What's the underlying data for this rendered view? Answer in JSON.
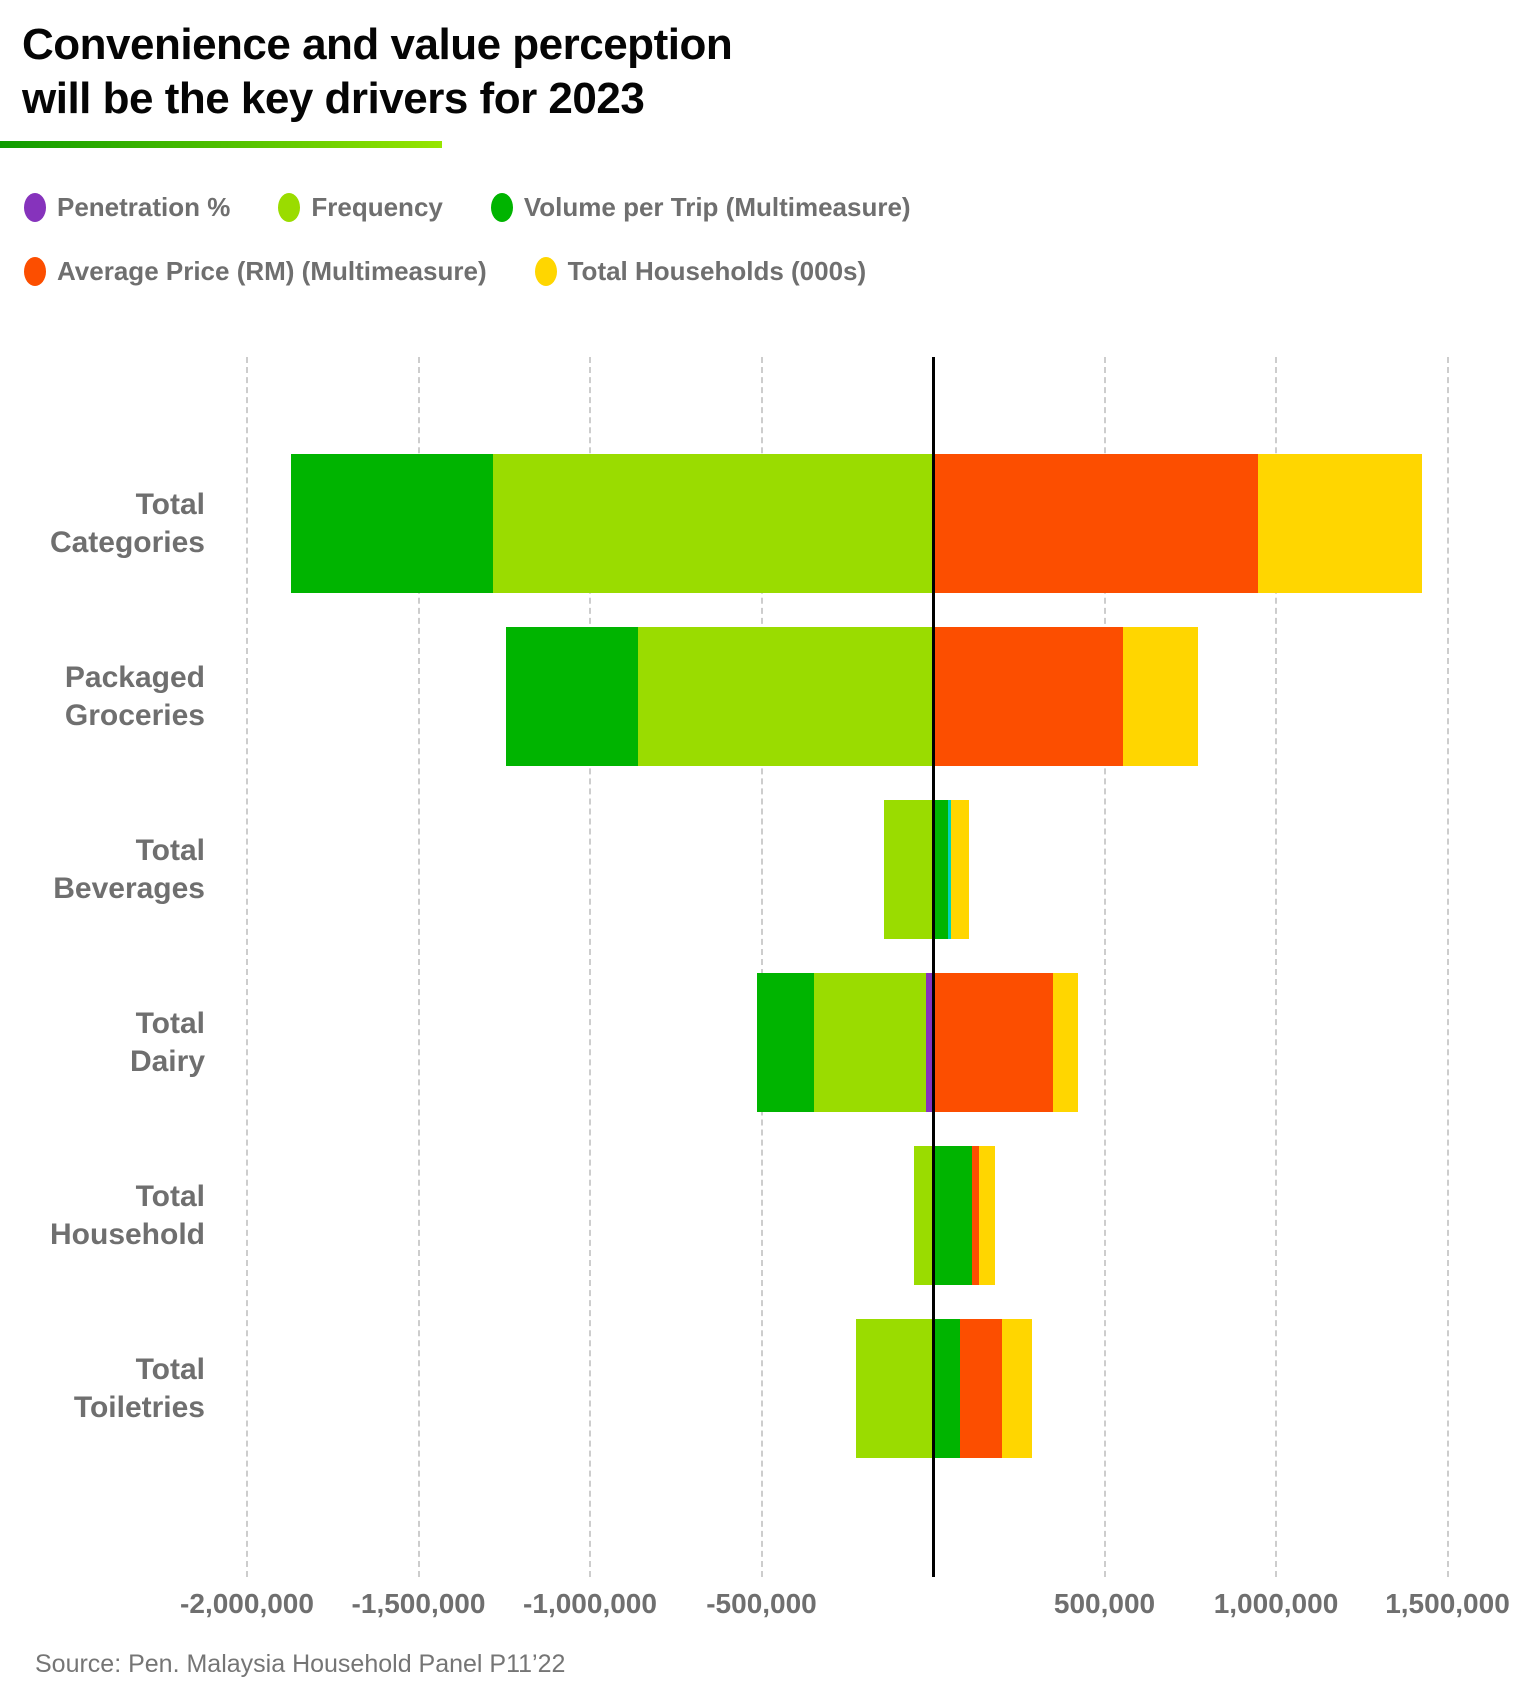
{
  "header": {
    "title_line1": "Convenience and value perception",
    "title_line2": "will be the key drivers for 2023"
  },
  "legend": {
    "items": [
      {
        "label": "Penetration %",
        "color": "#8633bc"
      },
      {
        "label": "Frequency",
        "color": "#9adc00"
      },
      {
        "label": "Volume per Trip (Multimeasure)",
        "color": "#00b400"
      },
      {
        "label": "Average Price (RM) (Multimeasure)",
        "color": "#fc4e00"
      },
      {
        "label": "Total Households (000s)",
        "color": "#ffd600"
      }
    ]
  },
  "footer": {
    "source": "Source: Pen. Malaysia Household Panel P11’22"
  },
  "chart_data": {
    "type": "bar",
    "subtype": "diverging-stacked-horizontal",
    "title": "Convenience and value perception will be the key drivers for 2023",
    "xlabel": "",
    "ylabel": "",
    "xlim": [
      -2350000,
      1770000
    ],
    "grid": "vertical dashed gridlines every 500,000",
    "zero_line": true,
    "legend_position": "top-left, two rows",
    "categories": [
      "Total\nCategories",
      "Packaged\nGroceries",
      "Total\nBeverages",
      "Total\nDairy",
      "Total\nHousehold",
      "Total\nToiletries"
    ],
    "series": [
      {
        "name": "Penetration %",
        "color": "#8633bc",
        "values": [
          0,
          0,
          0,
          -20000,
          0,
          0
        ]
      },
      {
        "name": "Frequency",
        "color": "#9adc00",
        "values": [
          -1284000,
          -859000,
          -144000,
          -327000,
          -56000,
          -225000
        ]
      },
      {
        "name": "Volume per Trip (Multimeasure)",
        "color": "#00b400",
        "values": [
          -589000,
          -387000,
          43000,
          -167000,
          115000,
          79000
        ]
      },
      {
        "name": "Unlabeled (teal)",
        "color": "#00d5bb",
        "values": [
          0,
          0,
          9000,
          0,
          0,
          0
        ]
      },
      {
        "name": "Average Price (RM) (Multimeasure)",
        "color": "#fc4e00",
        "values": [
          947000,
          553000,
          0,
          349000,
          19000,
          122000
        ]
      },
      {
        "name": "Total Households (000s)",
        "color": "#ffd600",
        "values": [
          479000,
          219000,
          52000,
          74000,
          46000,
          87000
        ]
      }
    ],
    "x_axis": {
      "ticks": [
        {
          "value": -2000000,
          "label": "-2,000,000"
        },
        {
          "value": -1500000,
          "label": "-1,500,000"
        },
        {
          "value": -1000000,
          "label": "-1,000,000"
        },
        {
          "value": -500000,
          "label": "-500,000"
        },
        {
          "value": 500000,
          "label": "500,000"
        },
        {
          "value": 1000000,
          "label": "1,000,000"
        },
        {
          "value": 1500000,
          "label": "1,500,000"
        }
      ]
    }
  }
}
